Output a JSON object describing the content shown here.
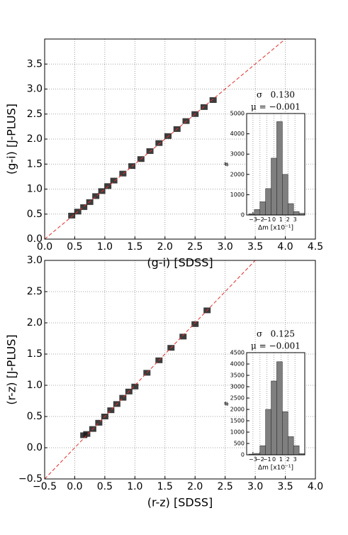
{
  "chart_data": [
    {
      "type": "scatter",
      "xlabel": "(g-i) [SDSS]",
      "ylabel": "(g-i) [J-PLUS]",
      "x": [
        0.45,
        0.55,
        0.65,
        0.75,
        0.85,
        0.95,
        1.05,
        1.15,
        1.3,
        1.45,
        1.6,
        1.75,
        1.9,
        2.05,
        2.2,
        2.35,
        2.5,
        2.65,
        2.8
      ],
      "y": [
        0.47,
        0.55,
        0.64,
        0.74,
        0.86,
        0.96,
        1.06,
        1.17,
        1.31,
        1.46,
        1.6,
        1.76,
        1.92,
        2.06,
        2.2,
        2.36,
        2.5,
        2.64,
        2.78
      ],
      "color": "#1a1a1a",
      "xlim": [
        0,
        4.5
      ],
      "ylim": [
        0,
        4.0
      ],
      "xticks": [
        {
          "value": 0,
          "label": "0.0"
        },
        0.5,
        {
          "value": 1,
          "label": "1.0"
        },
        1.5,
        {
          "value": 2,
          "label": "2.0"
        },
        2.5,
        {
          "value": 3,
          "label": "3.0"
        },
        3.5,
        {
          "value": 4,
          "label": "4.0"
        },
        4.5
      ],
      "yticks": [
        {
          "value": 0,
          "label": "0.0"
        },
        0.5,
        {
          "value": 1,
          "label": "1.0"
        },
        1.5,
        {
          "value": 2,
          "label": "2.0"
        },
        2.5,
        {
          "value": 3,
          "label": "3.0"
        },
        3.5
      ],
      "grid": true
    },
    {
      "type": "histogram",
      "title": "σ   0.130",
      "subtitle": "μ = −0.001",
      "xlabel": "Δm [x10⁻¹]",
      "ylabel": "#",
      "bins": [
        -3.6,
        -2.8,
        -2.0,
        -1.2,
        -0.4,
        0.4,
        1.2,
        2.0,
        2.8,
        3.6,
        4.4
      ],
      "values": [
        60,
        270,
        650,
        1300,
        2800,
        4600,
        2000,
        560,
        170,
        80
      ],
      "color": "#7f7f7f",
      "xlim": [
        -3.9,
        4.4
      ],
      "ylim": [
        0,
        5000
      ],
      "xticks": [
        {
          "value": -3,
          "label": "−3"
        },
        {
          "value": -2,
          "label": "−2"
        },
        {
          "value": -1,
          "label": "−1"
        },
        0,
        1,
        2,
        3
      ],
      "yticks": [
        0,
        1000,
        2000,
        3000,
        4000,
        5000
      ],
      "grid": "x"
    },
    {
      "type": "scatter",
      "xlabel": "(r-z) [SDSS]",
      "ylabel": "(r-z) [J-PLUS]",
      "x": [
        0.15,
        0.2,
        0.3,
        0.4,
        0.5,
        0.6,
        0.7,
        0.8,
        0.9,
        1.0,
        1.2,
        1.4,
        1.6,
        1.8,
        2.0,
        2.2
      ],
      "y": [
        0.2,
        0.22,
        0.3,
        0.4,
        0.5,
        0.6,
        0.7,
        0.8,
        0.9,
        0.98,
        1.2,
        1.4,
        1.6,
        1.78,
        1.98,
        2.2
      ],
      "color": "#1a1a1a",
      "xlim": [
        -0.5,
        4.0
      ],
      "ylim": [
        -0.5,
        3.0
      ],
      "xticks": [
        {
          "value": -0.5,
          "label": "−0.5"
        },
        {
          "value": 0,
          "label": "0.0"
        },
        0.5,
        {
          "value": 1,
          "label": "1.0"
        },
        1.5,
        {
          "value": 2,
          "label": "2.0"
        },
        2.5,
        {
          "value": 3,
          "label": "3.0"
        },
        3.5,
        {
          "value": 4,
          "label": "4.0"
        }
      ],
      "yticks": [
        {
          "value": -0.5,
          "label": "−0.5"
        },
        {
          "value": 0,
          "label": "0.0"
        },
        0.5,
        {
          "value": 1,
          "label": "1.0"
        },
        1.5,
        {
          "value": 2,
          "label": "2.0"
        },
        2.5,
        {
          "value": 3,
          "label": "3.0"
        }
      ],
      "grid": true
    },
    {
      "type": "histogram",
      "title": "σ   0.125",
      "subtitle": "μ = −0.001",
      "xlabel": "Δm [x10⁻¹]",
      "ylabel": "#",
      "bins": [
        -3.6,
        -2.8,
        -2.0,
        -1.2,
        -0.4,
        0.4,
        1.2,
        2.0,
        2.8,
        3.6,
        4.4
      ],
      "values": [
        30,
        60,
        400,
        2000,
        3250,
        4100,
        1900,
        800,
        400,
        50
      ],
      "color": "#7f7f7f",
      "xlim": [
        -3.9,
        4.4
      ],
      "ylim": [
        0,
        4500
      ],
      "xticks": [
        {
          "value": -3,
          "label": "−3"
        },
        {
          "value": -2,
          "label": "−2"
        },
        {
          "value": -1,
          "label": "−1"
        },
        0,
        1,
        2,
        3
      ],
      "yticks": [
        0,
        500,
        1000,
        1500,
        2000,
        2500,
        3000,
        3500,
        4000,
        4500
      ],
      "grid": "x"
    }
  ]
}
